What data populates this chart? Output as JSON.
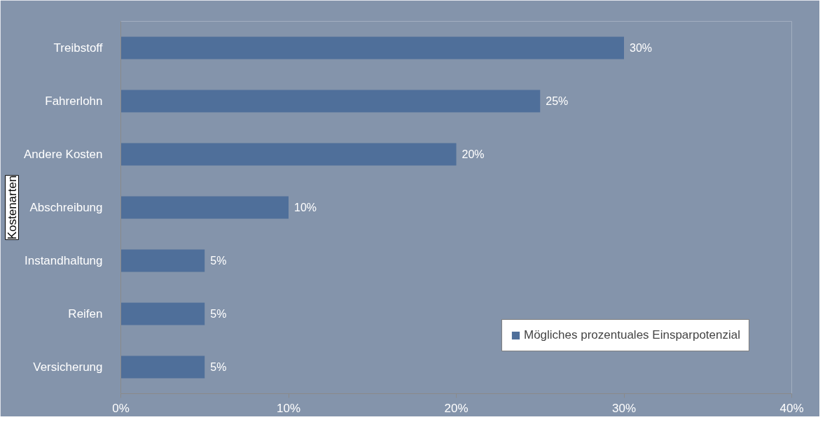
{
  "chart_data": {
    "type": "bar",
    "orientation": "horizontal",
    "ylabel": "Kostenarten",
    "categories": [
      "Treibstoff",
      "Fahrerlohn",
      "Andere Kosten",
      "Abschreibung",
      "Instandhaltung",
      "Reifen",
      "Versicherung"
    ],
    "series": [
      {
        "name": "Mögliches prozentuales Einsparpotenzial",
        "color": "#4f6f9a",
        "values": [
          30,
          25,
          20,
          10,
          5,
          5,
          5
        ],
        "value_labels": [
          "30%",
          "25%",
          "20%",
          "10%",
          "5%",
          "5%",
          "5%"
        ]
      }
    ],
    "xlim": [
      0,
      40
    ],
    "xticks": [
      {
        "value": 0,
        "label": "0%"
      },
      {
        "value": 10,
        "label": "10%"
      },
      {
        "value": 20,
        "label": "20%"
      },
      {
        "value": 30,
        "label": "30%"
      },
      {
        "value": 40,
        "label": "40%"
      }
    ],
    "grid": false,
    "legend": "bottom right"
  }
}
